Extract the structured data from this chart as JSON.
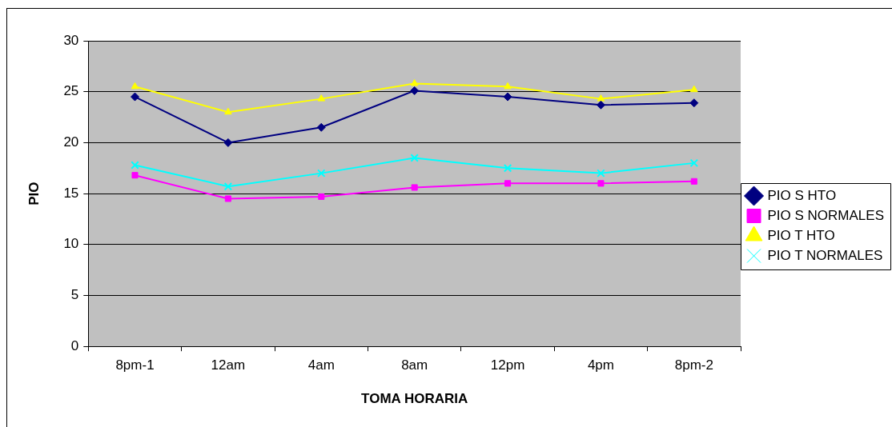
{
  "chart_data": {
    "type": "line",
    "xlabel": "TOMA HORARIA",
    "ylabel": "PIO",
    "categories": [
      "8pm-1",
      "12am",
      "4am",
      "8am",
      "12pm",
      "4pm",
      "8pm-2"
    ],
    "series": [
      {
        "name": "PIO S HTO",
        "color": "#000080",
        "marker": "diamond",
        "values": [
          24.5,
          20,
          21.5,
          25.1,
          24.5,
          23.7,
          23.9
        ]
      },
      {
        "name": "PIO S NORMALES",
        "color": "#ff00ff",
        "marker": "square",
        "values": [
          16.8,
          14.5,
          14.7,
          15.6,
          16,
          16,
          16.2
        ]
      },
      {
        "name": "PIO T HTO",
        "color": "#ffff00",
        "marker": "triangle",
        "values": [
          25.5,
          23,
          24.3,
          25.8,
          25.5,
          24.3,
          25.2
        ]
      },
      {
        "name": "PIO T NORMALES",
        "color": "#00ffff",
        "marker": "cross",
        "values": [
          17.8,
          15.7,
          17,
          18.5,
          17.5,
          17,
          18
        ]
      }
    ],
    "ylim": [
      0,
      30
    ],
    "yticks": [
      0,
      5,
      10,
      15,
      20,
      25,
      30
    ],
    "grid": "y",
    "legend": "right"
  }
}
